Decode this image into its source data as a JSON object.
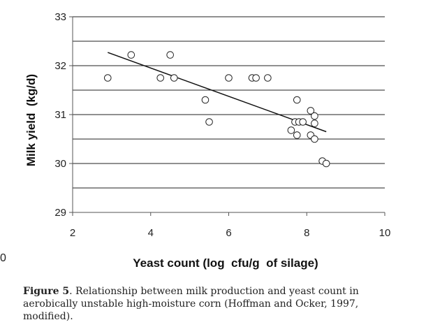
{
  "chart_data": {
    "type": "scatter",
    "title": "",
    "xlabel": "Yeast count (log  cfu/g  of silage)",
    "ylabel": "Milk yield  (kg/d)",
    "xlim": [
      2,
      10
    ],
    "ylim": [
      29,
      33
    ],
    "xticks": [
      "2",
      "4",
      "6",
      "8",
      "10"
    ],
    "yticks": [
      "29",
      "30",
      "31",
      "32",
      "33"
    ],
    "grid": "horizontal",
    "marker": "open-circle",
    "series": [
      {
        "points": [
          {
            "x": 2.9,
            "y": 31.75
          },
          {
            "x": 3.5,
            "y": 32.22
          },
          {
            "x": 4.25,
            "y": 31.75
          },
          {
            "x": 4.5,
            "y": 32.22
          },
          {
            "x": 4.6,
            "y": 31.75
          },
          {
            "x": 5.4,
            "y": 31.3
          },
          {
            "x": 5.5,
            "y": 30.85
          },
          {
            "x": 6.0,
            "y": 31.75
          },
          {
            "x": 6.6,
            "y": 31.75
          },
          {
            "x": 6.7,
            "y": 31.75
          },
          {
            "x": 7.0,
            "y": 31.75
          },
          {
            "x": 7.6,
            "y": 30.68
          },
          {
            "x": 7.7,
            "y": 30.85
          },
          {
            "x": 7.75,
            "y": 31.3
          },
          {
            "x": 7.75,
            "y": 30.58
          },
          {
            "x": 7.8,
            "y": 30.85
          },
          {
            "x": 7.9,
            "y": 30.85
          },
          {
            "x": 8.1,
            "y": 31.08
          },
          {
            "x": 8.1,
            "y": 30.58
          },
          {
            "x": 8.2,
            "y": 30.97
          },
          {
            "x": 8.2,
            "y": 30.82
          },
          {
            "x": 8.2,
            "y": 30.5
          },
          {
            "x": 8.4,
            "y": 30.05
          },
          {
            "x": 8.5,
            "y": 30.0
          }
        ]
      }
    ],
    "trendline": {
      "x": [
        2.9,
        8.5
      ],
      "y": [
        32.27,
        30.65
      ]
    }
  },
  "stray_label": "0",
  "caption": {
    "label": "Figure 5",
    "text": ". Relationship between milk production and yeast count in aerobically unstable high-moisture corn (Hoffman and Ocker, 1997, modified)."
  },
  "colors": {
    "axis": "#555555",
    "grid": "#222222",
    "trendline": "#111111",
    "marker_stroke": "#222222",
    "marker_fill": "#ffffff"
  }
}
